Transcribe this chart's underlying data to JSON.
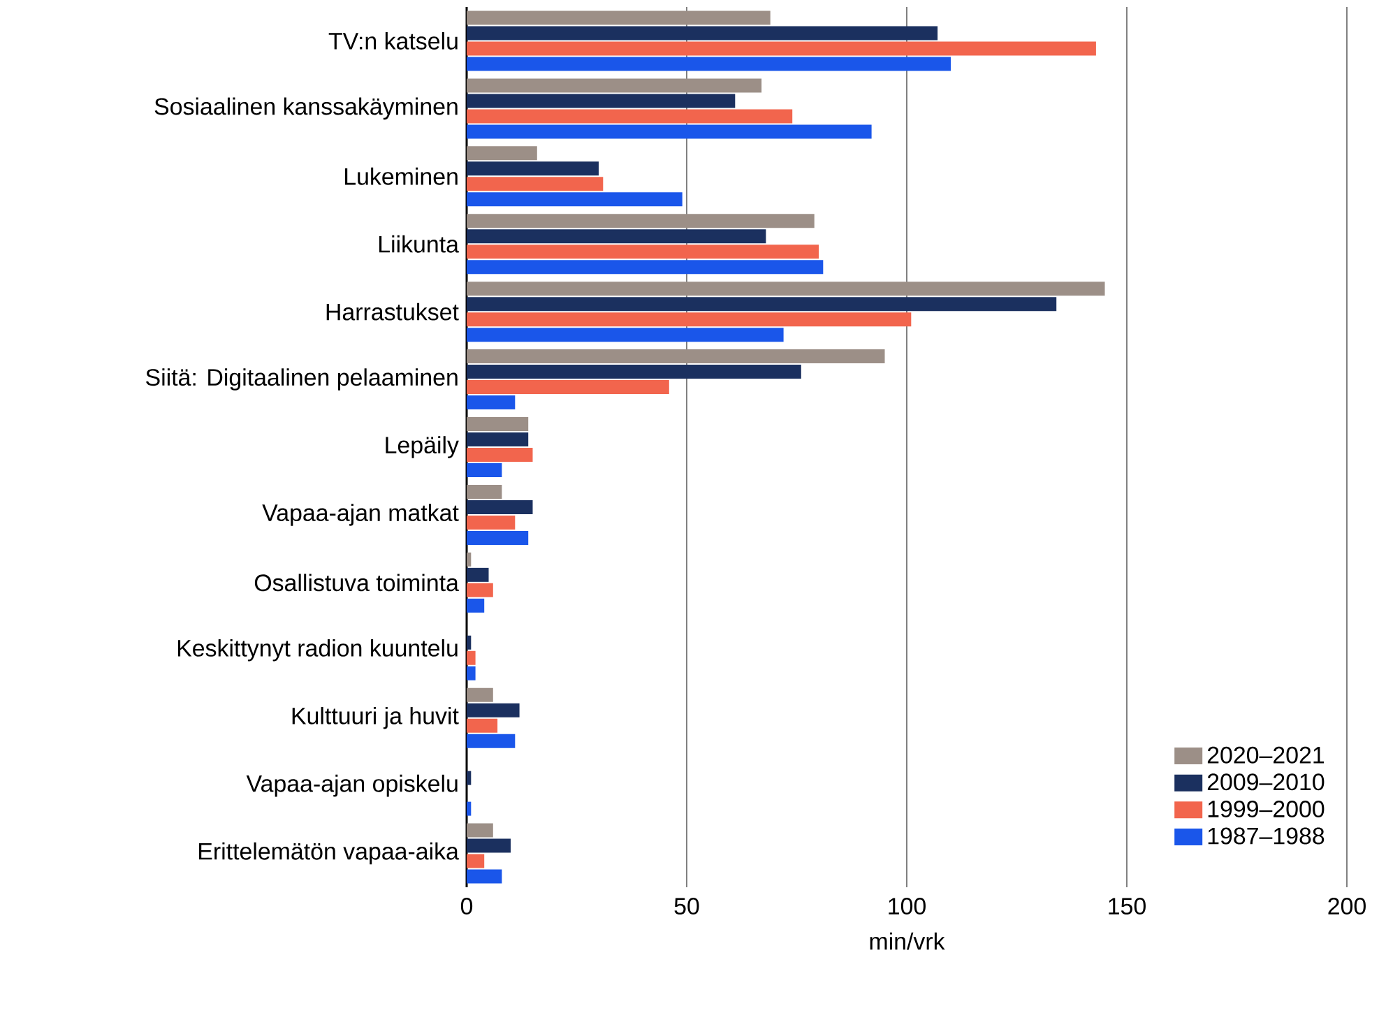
{
  "chart_data": {
    "type": "bar",
    "orientation": "horizontal",
    "xlabel": "min/vrk",
    "categories": [
      "TV:n katselu",
      "Sosiaalinen kanssakäyminen",
      "Lukeminen",
      "Liikunta",
      "Harrastukset",
      "Siitä: Digitaalinen pelaaminen",
      "Lepäily",
      "Vapaa-ajan matkat",
      "Osallistuva toiminta",
      "Keskittynyt radion kuuntelu",
      "Kulttuuri ja huvit",
      "Vapaa-ajan opiskelu",
      "Erittelemätön vapaa-aika"
    ],
    "series": [
      {
        "name": "2020–2021",
        "color": "#9c8f87",
        "values": [
          69,
          67,
          16,
          79,
          145,
          95,
          14,
          8,
          1,
          null,
          6,
          null,
          6
        ]
      },
      {
        "name": "2009–2010",
        "color": "#1b305f",
        "values": [
          107,
          61,
          30,
          68,
          134,
          76,
          14,
          15,
          5,
          1,
          12,
          1,
          10
        ]
      },
      {
        "name": "1999–2000",
        "color": "#f2654d",
        "values": [
          143,
          74,
          31,
          80,
          101,
          46,
          15,
          11,
          6,
          2,
          7,
          null,
          4
        ]
      },
      {
        "name": "1987–1988",
        "color": "#1a56ea",
        "values": [
          110,
          92,
          49,
          81,
          72,
          11,
          8,
          14,
          4,
          2,
          11,
          1,
          8
        ]
      }
    ],
    "xlim": [
      0,
      200
    ],
    "xticks": [
      0,
      50,
      100,
      150,
      200
    ],
    "grid": "x",
    "legend": "bottom right"
  }
}
